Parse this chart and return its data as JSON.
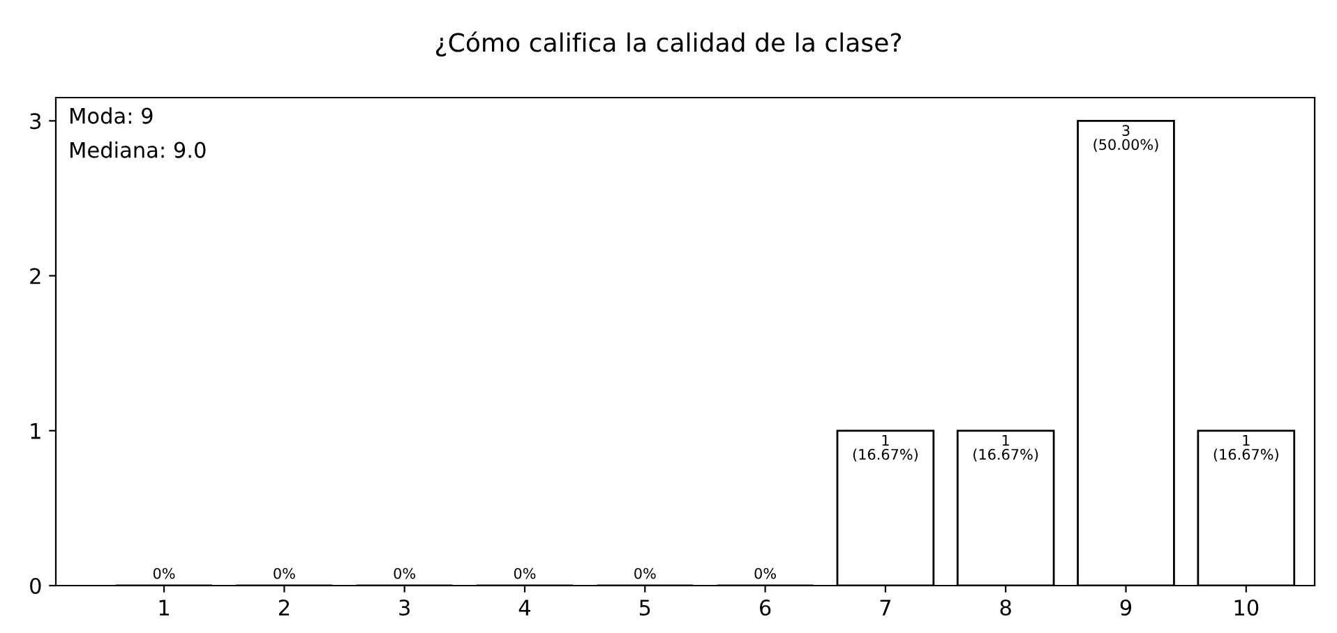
{
  "chart_data": {
    "type": "bar",
    "title": "¿Cómo califica la calidad de la clase?",
    "categories": [
      "1",
      "2",
      "3",
      "4",
      "5",
      "6",
      "7",
      "8",
      "9",
      "10"
    ],
    "values": [
      0,
      0,
      0,
      0,
      0,
      0,
      1,
      1,
      3,
      1
    ],
    "value_labels": [
      "0%",
      "0%",
      "0%",
      "0%",
      "0%",
      "0%",
      "1\n(16.67%)",
      "1\n(16.67%)",
      "3\n(50.00%)",
      "1\n(16.67%)"
    ],
    "color": "#ffffff",
    "ylim": [
      0,
      3.15
    ],
    "yticks": [
      0,
      1,
      2,
      3
    ],
    "grid": false,
    "legend": false,
    "annotations": [
      "Moda: 9",
      "Mediana: 9.0"
    ]
  }
}
